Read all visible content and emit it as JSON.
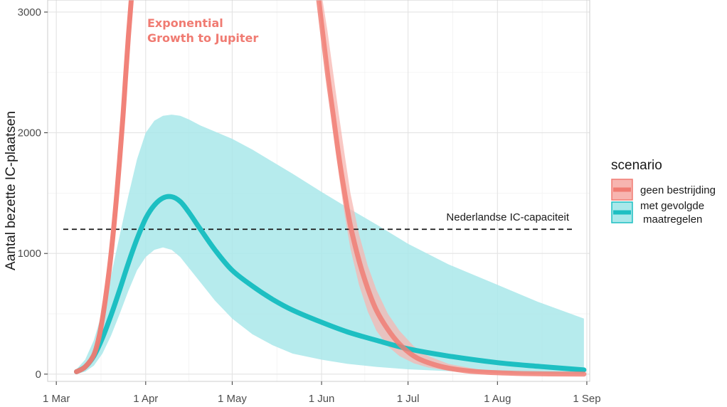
{
  "chart_data": {
    "type": "line",
    "title": "",
    "xlabel": "",
    "ylabel": "Aantal bezette IC-plaatsen",
    "x_ticks": [
      "1 Mar",
      "1 Apr",
      "1 May",
      "1 Jun",
      "1 Jul",
      "1 Aug",
      "1 Sep"
    ],
    "x_range": [
      "2020-02-27",
      "2020-09-02"
    ],
    "y_ticks": [
      0,
      1000,
      2000,
      3000
    ],
    "ylim": [
      -60,
      3100
    ],
    "grid": true,
    "reference_line": {
      "label": "Nederlandse IC-capaciteit",
      "value": 1200,
      "style": "dashed"
    },
    "annotations": [
      {
        "lines": [
          "Exponential",
          "Growth to Jupiter"
        ],
        "color": "#f07b72"
      }
    ],
    "legend": {
      "title": "scenario",
      "position": "right",
      "entries": [
        {
          "label": "geen bestrijding",
          "color": "#f07b72",
          "band_color": "#f7b5b0"
        },
        {
          "label_lines": [
            "met gevolgde",
            "maatregelen"
          ],
          "color": "#1dbfc2",
          "band_color": "#a9e8ea"
        }
      ]
    },
    "series": [
      {
        "name": "geen bestrijding",
        "color": "#f07b72",
        "x": [
          "2020-03-08",
          "2020-03-11",
          "2020-03-14",
          "2020-03-16",
          "2020-03-18",
          "2020-03-20",
          "2020-03-22",
          "2020-03-24",
          "2020-03-25",
          "2020-03-26",
          "2020-03-27",
          "2020-03-28",
          "2020-03-29"
        ],
        "y": [
          20,
          60,
          160,
          330,
          620,
          1000,
          1500,
          2100,
          2450,
          2800,
          3100,
          3400,
          3800
        ]
      },
      {
        "name": "geen bestrijding (daling)",
        "color": "#f07b72",
        "x": [
          "2020-05-30",
          "2020-06-01",
          "2020-06-03",
          "2020-06-05",
          "2020-06-07",
          "2020-06-09",
          "2020-06-11",
          "2020-06-14",
          "2020-06-17",
          "2020-06-20",
          "2020-06-24",
          "2020-06-28",
          "2020-07-03",
          "2020-07-08",
          "2020-07-15",
          "2020-07-25",
          "2020-08-10",
          "2020-08-31"
        ],
        "y": [
          3300,
          2900,
          2500,
          2150,
          1800,
          1500,
          1230,
          940,
          710,
          530,
          370,
          250,
          150,
          95,
          50,
          20,
          5,
          0
        ],
        "band_lower": [
          3300,
          2850,
          2420,
          2030,
          1650,
          1320,
          1040,
          740,
          520,
          360,
          230,
          150,
          90,
          55,
          28,
          10,
          2,
          0
        ],
        "band_upper": [
          3300,
          3150,
          2850,
          2500,
          2150,
          1820,
          1500,
          1160,
          900,
          700,
          500,
          360,
          230,
          150,
          85,
          40,
          12,
          4
        ]
      },
      {
        "name": "met gevolgde maatregelen",
        "color": "#1dbfc2",
        "x": [
          "2020-03-08",
          "2020-03-11",
          "2020-03-14",
          "2020-03-17",
          "2020-03-20",
          "2020-03-23",
          "2020-03-26",
          "2020-03-29",
          "2020-04-01",
          "2020-04-04",
          "2020-04-07",
          "2020-04-10",
          "2020-04-13",
          "2020-04-16",
          "2020-04-20",
          "2020-04-25",
          "2020-05-01",
          "2020-05-08",
          "2020-05-15",
          "2020-05-22",
          "2020-06-01",
          "2020-06-10",
          "2020-06-20",
          "2020-07-01",
          "2020-07-15",
          "2020-08-01",
          "2020-08-15",
          "2020-08-31"
        ],
        "y": [
          20,
          60,
          150,
          300,
          490,
          700,
          920,
          1120,
          1290,
          1400,
          1460,
          1470,
          1430,
          1340,
          1200,
          1030,
          860,
          730,
          620,
          530,
          430,
          350,
          280,
          210,
          150,
          95,
          65,
          35
        ],
        "band_lower": [
          0,
          20,
          70,
          170,
          320,
          500,
          690,
          860,
          970,
          1030,
          1050,
          1030,
          970,
          880,
          760,
          610,
          460,
          330,
          240,
          170,
          120,
          85,
          60,
          40,
          25,
          15,
          10,
          5
        ],
        "band_upper": [
          40,
          120,
          280,
          520,
          820,
          1150,
          1480,
          1780,
          2000,
          2100,
          2140,
          2150,
          2140,
          2110,
          2060,
          2010,
          1950,
          1860,
          1760,
          1660,
          1510,
          1380,
          1240,
          1080,
          910,
          740,
          600,
          460
        ]
      }
    ]
  }
}
